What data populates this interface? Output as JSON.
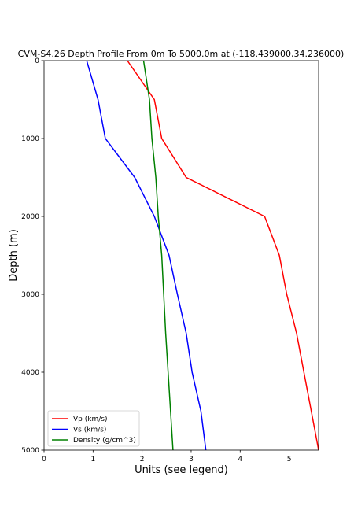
{
  "chart_data": {
    "type": "line",
    "title": "CVM-S4.26 Depth Profile From 0m To 5000.0m at (-118.439000,34.236000)",
    "xlabel": "Units (see legend)",
    "ylabel": "Depth (m)",
    "xlim": [
      0,
      5.6
    ],
    "ylim": [
      5000,
      0
    ],
    "y_inverted": true,
    "grid": false,
    "legend_position": "lower-left",
    "xticks": [
      "0",
      "1",
      "2",
      "3",
      "4",
      "5"
    ],
    "yticks": [
      "0",
      "1000",
      "2000",
      "3000",
      "4000",
      "5000"
    ],
    "series": [
      {
        "name": "Vp (km/s)",
        "color": "#ff0000",
        "points": [
          [
            1.7,
            0
          ],
          [
            2.25,
            500
          ],
          [
            2.4,
            1000
          ],
          [
            2.9,
            1500
          ],
          [
            4.5,
            2000
          ],
          [
            4.8,
            2500
          ],
          [
            4.95,
            3000
          ],
          [
            5.15,
            3500
          ],
          [
            5.3,
            4000
          ],
          [
            5.45,
            4500
          ],
          [
            5.6,
            5000
          ]
        ]
      },
      {
        "name": "Vs (km/s)",
        "color": "#0000ff",
        "points": [
          [
            0.87,
            0
          ],
          [
            1.1,
            500
          ],
          [
            1.25,
            1000
          ],
          [
            1.85,
            1500
          ],
          [
            2.25,
            2000
          ],
          [
            2.55,
            2500
          ],
          [
            2.72,
            3000
          ],
          [
            2.9,
            3500
          ],
          [
            3.02,
            4000
          ],
          [
            3.2,
            4500
          ],
          [
            3.3,
            5000
          ]
        ]
      },
      {
        "name": "Density (g/cm^3)",
        "color": "#008000",
        "points": [
          [
            2.03,
            0
          ],
          [
            2.15,
            500
          ],
          [
            2.2,
            1000
          ],
          [
            2.28,
            1500
          ],
          [
            2.33,
            2000
          ],
          [
            2.4,
            2500
          ],
          [
            2.44,
            3000
          ],
          [
            2.48,
            3500
          ],
          [
            2.53,
            4000
          ],
          [
            2.58,
            4500
          ],
          [
            2.63,
            5000
          ]
        ]
      }
    ]
  }
}
